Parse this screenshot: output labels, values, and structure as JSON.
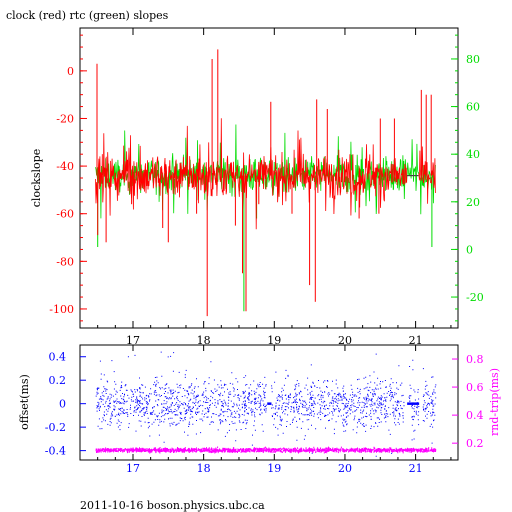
{
  "title": "clock (red) rtc (green) slopes",
  "footer": "2011-10-16  boson.physics.ubc.ca",
  "chart_data": [
    {
      "type": "line",
      "panel": "top",
      "title": "clock (red) rtc (green) slopes",
      "xlabel": "",
      "ylabel": "clockslope",
      "xlim": [
        16.25,
        21.6
      ],
      "ylim": [
        -108,
        18
      ],
      "y2lim": [
        -33,
        93
      ],
      "grid": false,
      "x_ticks": [
        "17",
        "18",
        "19",
        "20",
        "21"
      ],
      "y_ticks": [
        "0",
        "-20",
        "-40",
        "-60",
        "-80",
        "-100"
      ],
      "y2_ticks": [
        "80",
        "60",
        "40",
        "20",
        "0",
        "-20"
      ],
      "y_tick_values": [
        0,
        -20,
        -40,
        -60,
        -80,
        -100
      ],
      "y2_tick_values": [
        80,
        60,
        40,
        20,
        0,
        -20
      ],
      "x_tick_values": [
        17,
        18,
        19,
        20,
        21
      ],
      "series": [
        {
          "color": "#ff0000",
          "baseline": -44,
          "x_range": [
            16.47,
            21.28
          ],
          "gaps": [
            [
              20.88,
              21.04
            ]
          ],
          "spikes": [
            {
              "x": 16.49,
              "y": 3
            },
            {
              "x": 16.5,
              "y": -69
            },
            {
              "x": 16.62,
              "y": -72
            },
            {
              "x": 16.98,
              "y": -56
            },
            {
              "x": 17.42,
              "y": -66
            },
            {
              "x": 17.5,
              "y": -72
            },
            {
              "x": 17.9,
              "y": -60
            },
            {
              "x": 18.05,
              "y": -103
            },
            {
              "x": 18.12,
              "y": 5
            },
            {
              "x": 18.2,
              "y": 9
            },
            {
              "x": 18.45,
              "y": -65
            },
            {
              "x": 18.55,
              "y": -85
            },
            {
              "x": 18.6,
              "y": -101
            },
            {
              "x": 18.78,
              "y": -56
            },
            {
              "x": 18.95,
              "y": -13
            },
            {
              "x": 19.25,
              "y": -60
            },
            {
              "x": 19.5,
              "y": -90
            },
            {
              "x": 19.58,
              "y": -97
            },
            {
              "x": 19.6,
              "y": -12
            },
            {
              "x": 19.75,
              "y": -16
            },
            {
              "x": 20.2,
              "y": -62
            },
            {
              "x": 20.48,
              "y": -60
            },
            {
              "x": 20.5,
              "y": -20
            },
            {
              "x": 20.7,
              "y": -20
            },
            {
              "x": 21.08,
              "y": -8
            },
            {
              "x": 21.15,
              "y": -10
            },
            {
              "x": 21.22,
              "y": -10
            }
          ]
        },
        {
          "color": "#00dd00",
          "baseline": -44,
          "x_range": [
            16.47,
            21.28
          ],
          "gaps": [],
          "spikes": [
            {
              "x": 16.5,
              "y": -74
            },
            {
              "x": 18.57,
              "y": -101
            },
            {
              "x": 18.75,
              "y": -62
            },
            {
              "x": 21.23,
              "y": -74
            }
          ]
        }
      ]
    },
    {
      "type": "scatter",
      "panel": "bottom",
      "xlabel": "",
      "ylabel": "offset(ms)",
      "y2label": "rnd-trip(ms)",
      "xlim": [
        16.25,
        21.6
      ],
      "ylim": [
        -0.48,
        0.5
      ],
      "y2lim": [
        0.08,
        0.9
      ],
      "grid": false,
      "x_ticks": [
        "17",
        "18",
        "19",
        "20",
        "21"
      ],
      "y_ticks": [
        "0.4",
        "0.2",
        "0",
        "-0.2",
        "-0.4"
      ],
      "y2_ticks": [
        "0.8",
        "0.6",
        "0.4",
        "0.2"
      ],
      "y_tick_values": [
        0.4,
        0.2,
        0,
        -0.2,
        -0.4
      ],
      "y2_tick_values": [
        0.8,
        0.6,
        0.4,
        0.2
      ],
      "x_tick_values": [
        17,
        18,
        19,
        20,
        21
      ],
      "series": [
        {
          "name": "offset",
          "color": "#0000ff",
          "axis": "left",
          "center": 0.0,
          "spread": 0.1,
          "x_range": [
            16.47,
            21.28
          ],
          "gaps": [
            [
              18.88,
              18.95
            ],
            [
              20.83,
              20.9
            ],
            [
              21.04,
              21.1
            ]
          ],
          "flat_segments": [
            [
              18.9,
              18.96,
              0.0
            ],
            [
              20.88,
              21.05,
              0.0
            ]
          ]
        },
        {
          "name": "rnd-trip",
          "color": "#ff00ff",
          "axis": "right",
          "center": 0.15,
          "spread": 0.007,
          "x_range": [
            16.47,
            21.28
          ],
          "gaps": []
        }
      ]
    }
  ]
}
